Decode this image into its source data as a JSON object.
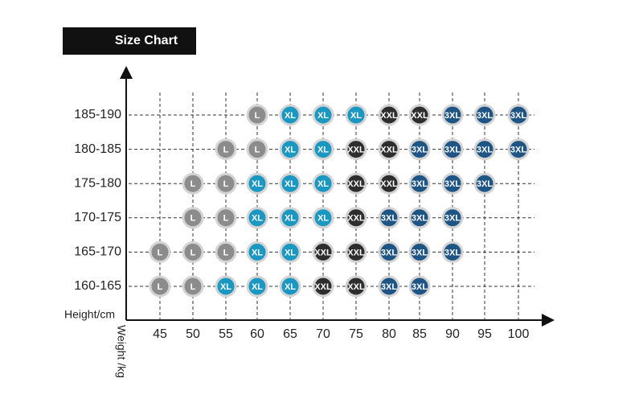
{
  "header": {
    "title": "Size Chart"
  },
  "y_axis_label": "Height/cm",
  "x_axis_label": "Weight /kg",
  "columns": [
    "45",
    "50",
    "55",
    "60",
    "65",
    "70",
    "75",
    "80",
    "85",
    "90",
    "95",
    "100"
  ],
  "size_colors": {
    "L": "#8c8c8c",
    "XL": "#1b98c2",
    "XXL": "#2e2e2e",
    "3XL": "#1f5585"
  },
  "rows": [
    {
      "label": "185-190",
      "cells": [
        null,
        null,
        null,
        "L",
        "XL",
        "XL",
        "XL",
        "XXL",
        "XXL",
        "3XL",
        "3XL",
        "3XL"
      ]
    },
    {
      "label": "180-185",
      "cells": [
        null,
        null,
        "L",
        "L",
        "XL",
        "XL",
        "XXL",
        "XXL",
        "3XL",
        "3XL",
        "3XL",
        "3XL"
      ]
    },
    {
      "label": "175-180",
      "cells": [
        null,
        "L",
        "L",
        "XL",
        "XL",
        "XL",
        "XXL",
        "XXL",
        "3XL",
        "3XL",
        "3XL",
        null
      ]
    },
    {
      "label": "170-175",
      "cells": [
        null,
        "L",
        "L",
        "XL",
        "XL",
        "XL",
        "XXL",
        "3XL",
        "3XL",
        "3XL",
        null,
        null
      ]
    },
    {
      "label": "165-170",
      "cells": [
        "L",
        "L",
        "L",
        "XL",
        "XL",
        "XXL",
        "XXL",
        "3XL",
        "3XL",
        "3XL",
        null,
        null
      ]
    },
    {
      "label": "160-165",
      "cells": [
        "L",
        "L",
        "XL",
        "XL",
        "XL",
        "XXL",
        "XXL",
        "3XL",
        "3XL",
        null,
        null,
        null
      ]
    }
  ]
}
